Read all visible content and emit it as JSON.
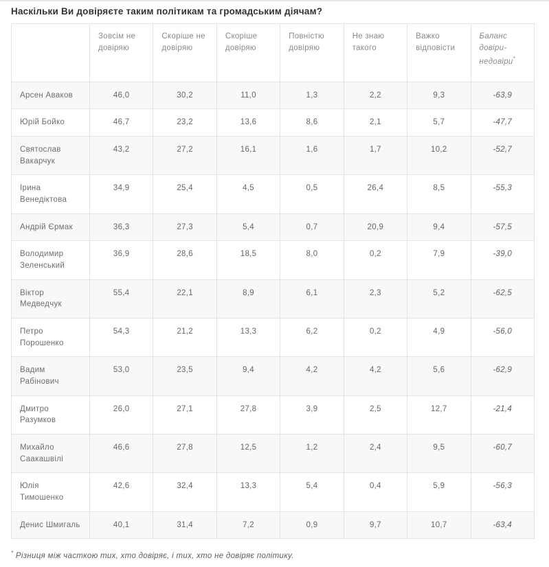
{
  "page": {
    "footnote_marker": "*",
    "footnote_text": "Різниця між часткою тих, хто довіряє, і тих, хто не довіряє політику."
  },
  "chart_data": {
    "type": "table",
    "title": "Наскільки Ви довіряєте таким політикам та громадським діячам?",
    "columns": [
      "Зовсім не довіряю",
      "Скоріше не довіряю",
      "Скоріше довіряю",
      "Повністю довіряю",
      "Не знаю такого",
      "Важко відповісти",
      "Баланс довіри-недовіри*"
    ],
    "rows": [
      {
        "name": "Арсен Аваков",
        "values": [
          46.0,
          30.2,
          11.0,
          1.3,
          2.2,
          9.3
        ],
        "balance": -63.9
      },
      {
        "name": "Юрій Бойко",
        "values": [
          46.7,
          23.2,
          13.6,
          8.6,
          2.1,
          5.7
        ],
        "balance": -47.7
      },
      {
        "name": "Святослав Вакарчук",
        "values": [
          43.2,
          27.2,
          16.1,
          1.6,
          1.7,
          10.2
        ],
        "balance": -52.7
      },
      {
        "name": "Ірина Венедіктова",
        "values": [
          34.9,
          25.4,
          4.5,
          0.5,
          26.4,
          8.5
        ],
        "balance": -55.3
      },
      {
        "name": "Андрій Єрмак",
        "values": [
          36.3,
          27.3,
          5.4,
          0.7,
          20.9,
          9.4
        ],
        "balance": -57.5
      },
      {
        "name": "Володимир Зеленський",
        "values": [
          36.9,
          28.6,
          18.5,
          8.0,
          0.2,
          7.9
        ],
        "balance": -39.0
      },
      {
        "name": "Віктор Медведчук",
        "values": [
          55.4,
          22.1,
          8.9,
          6.1,
          2.3,
          5.2
        ],
        "balance": -62.5
      },
      {
        "name": "Петро Порошенко",
        "values": [
          54.3,
          21.2,
          13.3,
          6.2,
          0.2,
          4.9
        ],
        "balance": -56.0
      },
      {
        "name": "Вадим Рабінович",
        "values": [
          53.0,
          23.5,
          9.4,
          4.2,
          4.2,
          5.6
        ],
        "balance": -62.9
      },
      {
        "name": "Дмитро Разумков",
        "values": [
          26.0,
          27.1,
          27.8,
          3.9,
          2.5,
          12.7
        ],
        "balance": -21.4
      },
      {
        "name": "Михайло Саакашвілі",
        "values": [
          46.6,
          27.8,
          12.5,
          1.2,
          2.4,
          9.5
        ],
        "balance": -60.7
      },
      {
        "name": "Юлія Тимошенко",
        "values": [
          42.6,
          32.4,
          13.3,
          5.4,
          0.4,
          5.9
        ],
        "balance": -56.3
      },
      {
        "name": "Денис Шмигаль",
        "values": [
          40.1,
          31.4,
          7.2,
          0.9,
          9.7,
          10.7
        ],
        "balance": -63.4
      }
    ],
    "format": {
      "decimal_separator": ","
    }
  },
  "colors": {
    "title_text": "#333333",
    "header_text": "#8a8a8a",
    "cell_text": "#666666",
    "table_border": "#e3e3e3",
    "row_stripe": "#f8f8f8",
    "top_rule": "#e1e6e1"
  }
}
